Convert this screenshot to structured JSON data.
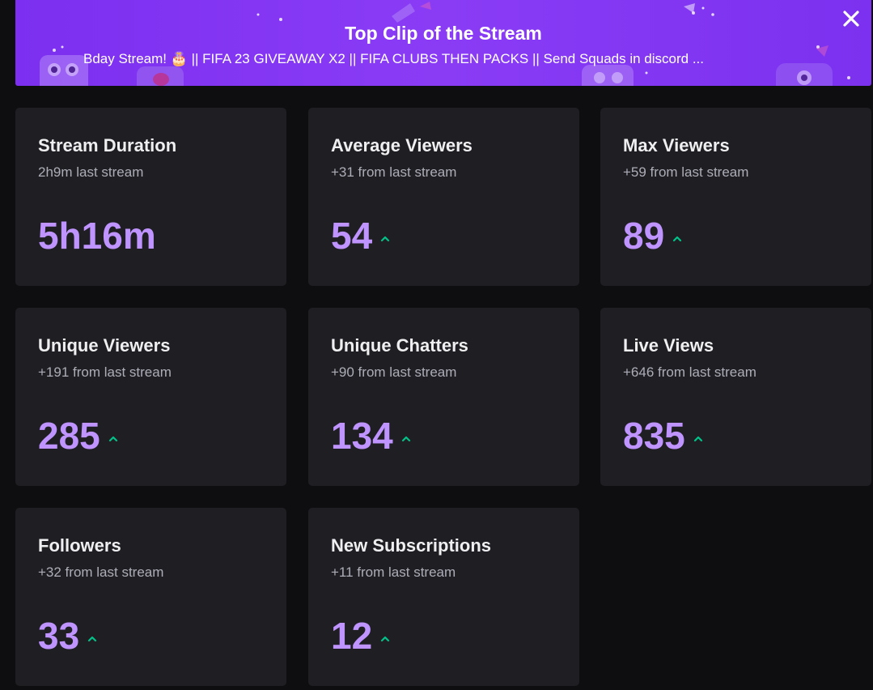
{
  "banner": {
    "title": "Top Clip of the Stream",
    "subtitle": "Bday Stream! 🎂 || FIFA 23 GIVEAWAY X2 || FIFA CLUBS THEN PACKS || Send Squads in discord ...",
    "close_icon": "close-icon",
    "background_color": "#8a3cf5"
  },
  "colors": {
    "card_bg": "#1f1f23",
    "value": "#bf94ff",
    "trend_up": "#00c28a",
    "page_bg": "#0e0e10"
  },
  "stats": [
    {
      "title": "Stream Duration",
      "subtitle": "2h9m last stream",
      "value": "5h16m",
      "trend": "none"
    },
    {
      "title": "Average Viewers",
      "subtitle": "+31 from last stream",
      "value": "54",
      "trend": "up"
    },
    {
      "title": "Max Viewers",
      "subtitle": "+59 from last stream",
      "value": "89",
      "trend": "up"
    },
    {
      "title": "Unique Viewers",
      "subtitle": "+191 from last stream",
      "value": "285",
      "trend": "up"
    },
    {
      "title": "Unique Chatters",
      "subtitle": "+90 from last stream",
      "value": "134",
      "trend": "up"
    },
    {
      "title": "Live Views",
      "subtitle": "+646 from last stream",
      "value": "835",
      "trend": "up"
    },
    {
      "title": "Followers",
      "subtitle": "+32 from last stream",
      "value": "33",
      "trend": "up"
    },
    {
      "title": "New Subscriptions",
      "subtitle": "+11 from last stream",
      "value": "12",
      "trend": "up"
    }
  ]
}
